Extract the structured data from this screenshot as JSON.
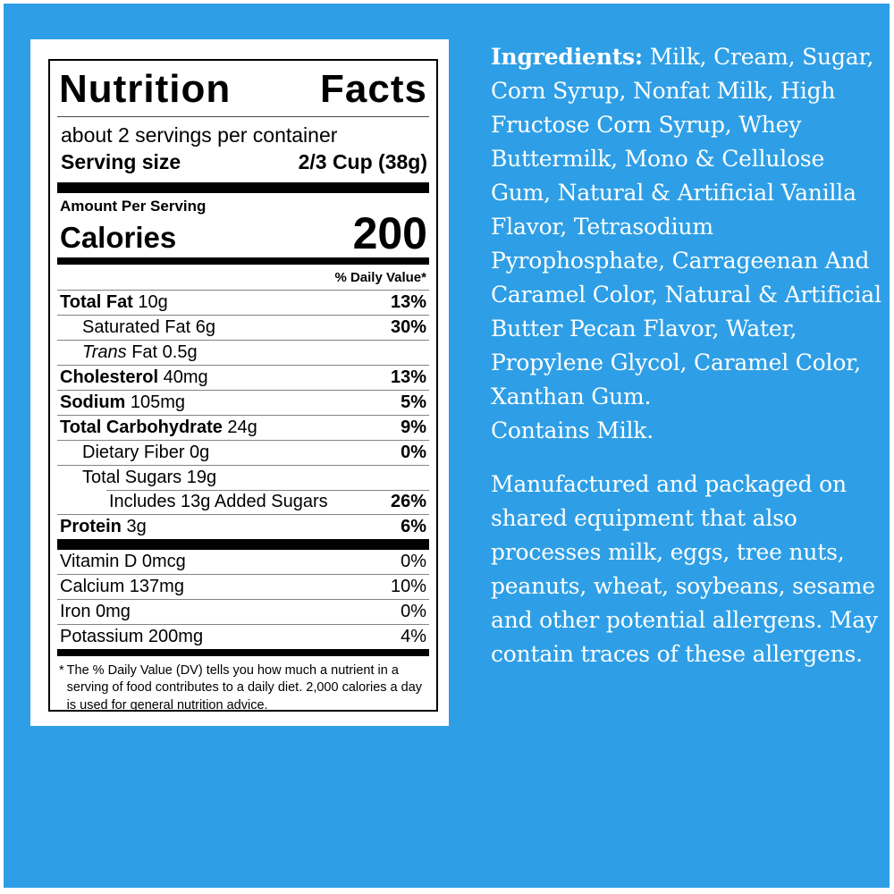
{
  "colors": {
    "background_blue": "#2E9FE6",
    "card_white": "#FFFFFF",
    "label_text": "#000000",
    "right_text": "#FFFFFF"
  },
  "nutrition_label": {
    "title": {
      "word1": "Nutrition",
      "word2": "Facts"
    },
    "servings_per_container": "about 2 servings per container",
    "serving_size_label": "Serving size",
    "serving_size_value": "2/3 Cup (38g)",
    "amount_per_serving": "Amount Per Serving",
    "calories_label": "Calories",
    "calories_value": "200",
    "daily_value_header": "% Daily Value*",
    "rows": [
      {
        "name_bold": "Total Fat",
        "name_rest": " 10g",
        "dv": "13%"
      },
      {
        "name_bold": "",
        "name_rest": "Saturated Fat 6g",
        "dv": "30%"
      },
      {
        "name_bold": "",
        "name_italic": "Trans",
        "name_rest": " Fat 0.5g",
        "dv": ""
      },
      {
        "name_bold": "Cholesterol",
        "name_rest": " 40mg",
        "dv": "13%"
      },
      {
        "name_bold": "Sodium",
        "name_rest": " 105mg",
        "dv": "5%"
      },
      {
        "name_bold": "Total Carbohydrate",
        "name_rest": " 24g",
        "dv": "9%"
      },
      {
        "name_bold": "",
        "name_rest": "Dietary Fiber 0g",
        "dv": "0%"
      },
      {
        "name_bold": "",
        "name_rest": "Total Sugars 19g",
        "dv": ""
      },
      {
        "name_bold": "",
        "name_rest": "Includes 13g Added Sugars",
        "dv": "26%"
      },
      {
        "name_bold": "Protein",
        "name_rest": " 3g",
        "dv": "6%"
      }
    ],
    "vitamin_rows": [
      {
        "name": "Vitamin D 0mcg",
        "dv": "0%"
      },
      {
        "name": "Calcium 137mg",
        "dv": "10%"
      },
      {
        "name": "Iron 0mg",
        "dv": "0%"
      },
      {
        "name": "Potassium 200mg",
        "dv": "4%"
      }
    ],
    "footnote_asterisk": "*",
    "footnote": "The % Daily Value (DV) tells you how much a nutrient in a serving of food contributes to a daily diet. 2,000 calories a day is used for general nutrition advice."
  },
  "right_panel": {
    "ingredients_heading": "Ingredients:",
    "ingredients_text": " Milk, Cream, Sugar, Corn Syrup, Nonfat Milk, High Fructose Corn Syrup, Whey Buttermilk, Mono & Cellulose Gum, Natural & Artificial Vanilla Flavor, Tetrasodium Pyrophosphate, Carrageenan And Caramel Color, Natural & Artificial Butter Pecan Flavor, Water, Propylene Glycol, Caramel Color, Xanthan Gum.",
    "contains": "Contains Milk.",
    "allergen_notice": "Manufactured and packaged on shared equipment that also processes milk, eggs, tree nuts, peanuts, wheat, soybeans, sesame and other potential allergens. May contain traces of these allergens."
  }
}
